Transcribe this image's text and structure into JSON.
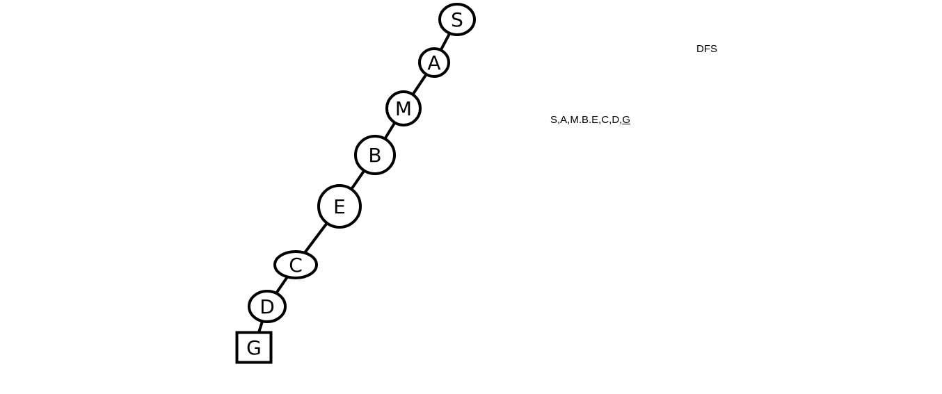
{
  "title": "DFS",
  "sequence": {
    "path_prefix": "S,A,M.B.E,C,D,",
    "goal": "G"
  },
  "nodes": [
    {
      "label": "S",
      "shape": "circle"
    },
    {
      "label": "A",
      "shape": "circle"
    },
    {
      "label": "M",
      "shape": "circle"
    },
    {
      "label": "B",
      "shape": "circle"
    },
    {
      "label": "E",
      "shape": "circle"
    },
    {
      "label": "C",
      "shape": "ellipse"
    },
    {
      "label": "D",
      "shape": "ellipse"
    },
    {
      "label": "G",
      "shape": "square"
    }
  ],
  "edges": [
    [
      "S",
      "A"
    ],
    [
      "A",
      "M"
    ],
    [
      "M",
      "B"
    ],
    [
      "B",
      "E"
    ],
    [
      "E",
      "C"
    ],
    [
      "C",
      "D"
    ],
    [
      "D",
      "G"
    ]
  ]
}
